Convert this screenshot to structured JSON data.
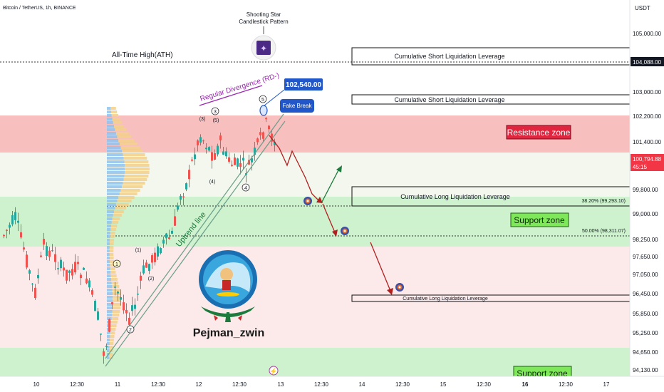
{
  "header": {
    "symbol_title": "Bitcoin / TetherUS, 1h, BINANCE",
    "currency": "USDT"
  },
  "price_axis": {
    "ticks": [
      "105,000.00",
      "103,000.00",
      "102,200.00",
      "101,400.00",
      "99,800.00",
      "99,000.00",
      "98,250.00",
      "97,650.00",
      "97,050.00",
      "96,450.00",
      "95,850.00",
      "95,250.00",
      "94,650.00",
      "94,130.00"
    ],
    "ath_tag": "104,088.00",
    "last_price_tag": "100,794.88",
    "countdown_tag": "45:15"
  },
  "time_axis": {
    "ticks": [
      "10",
      "12:30",
      "11",
      "12:30",
      "12",
      "12:30",
      "13",
      "12:30",
      "14",
      "12:30",
      "15",
      "12:30",
      "16",
      "12:30",
      "17"
    ]
  },
  "annotations": {
    "ath_label": "All-Time High(ATH)",
    "shooting_star_line1": "Shooting Star",
    "shooting_star_line2": "Candlestick Pattern",
    "divergence_label": "Regular Divergence (RD-)",
    "peak_price": "102,540.00",
    "fake_break": "Fake Break",
    "short_liq_1": "Cumulative Short Liquidation Leverage",
    "short_liq_2": "Cumulative Short Liquidation Leverage",
    "long_liq_1": "Cumulative Long Liquidation Leverage",
    "long_liq_2": "Cumulative Long Liquidation Leverage",
    "resistance_zone": "Resistance zone",
    "support_zone_1": "Support zone",
    "support_zone_2": "Support zone",
    "fib_382": "38.20% (99,293.10)",
    "fib_50": "50.00% (98,311.07)",
    "uptrend_line": "Uptrend line",
    "author": "Pejman_zwin",
    "waves": {
      "w1": "1",
      "w2": "2",
      "w3": "3",
      "w4": "4",
      "w5": "5",
      "sub1": "(1)",
      "sub2": "(2)",
      "sub3": "(3)",
      "sub4": "(4)",
      "sub5": "(5)"
    }
  },
  "colors": {
    "bull": "#26a69a",
    "bear": "#ef5350",
    "resistance_fill": "#f28b8b",
    "support_fill": "#9ee39e",
    "resistance_label_bg": "#e0263f",
    "support_label_bg": "#7ee85a",
    "peak_label_bg": "#2157c8",
    "fake_break_bg": "#2157c8",
    "divergence": "#9c27b0",
    "green_arrow": "#1b7a3c",
    "red_arrow": "#b21f1f"
  },
  "chart_data": {
    "type": "candlestick",
    "symbol": "Bitcoin / TetherUS",
    "timeframe": "1h",
    "exchange": "BINANCE",
    "y_range": [
      94000,
      105500
    ],
    "last_price": 100794.88,
    "all_time_high": 104088.0,
    "peak": 102540.0,
    "resistance_zone": [
      101000,
      102200
    ],
    "support_zones": [
      [
        98050,
        99600
      ],
      [
        93950,
        94800
      ]
    ],
    "fib_levels": [
      {
        "ratio": "38.20%",
        "price": 99293.1
      },
      {
        "ratio": "50.00%",
        "price": 98311.07
      }
    ],
    "liquidation_levels": [
      {
        "type": "Cumulative Short Liquidation Leverage",
        "price_range": [
          103800,
          104400
        ]
      },
      {
        "type": "Cumulative Short Liquidation Leverage",
        "price_range": [
          102800,
          103000
        ]
      },
      {
        "type": "Cumulative Long Liquidation Leverage",
        "price_range": [
          99250,
          99600
        ]
      },
      {
        "type": "Cumulative Long Liquidation Leverage",
        "price_range": [
          96150,
          96250
        ]
      }
    ]
  }
}
